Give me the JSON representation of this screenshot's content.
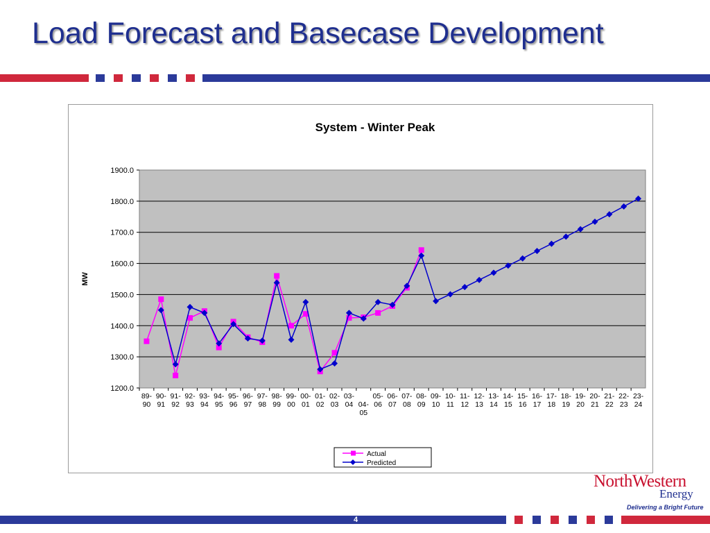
{
  "slide": {
    "title": "Load Forecast and Basecase Development",
    "page_number": "4"
  },
  "colors": {
    "navy": "#2b3a9a",
    "red": "#d0283c",
    "plot_bg": "#c0c0c0",
    "actual": "#ff00ff",
    "predicted": "#0000cc"
  },
  "logo": {
    "name": "NorthWestern",
    "sub": "Energy",
    "tagline": "Delivering a Bright Future"
  },
  "chart_data": {
    "type": "line",
    "title": "System - Winter Peak",
    "xlabel": "",
    "ylabel": "MW",
    "ylim": [
      1200,
      1900
    ],
    "yticks": [
      "1200.0",
      "1300.0",
      "1400.0",
      "1500.0",
      "1600.0",
      "1700.0",
      "1800.0",
      "1900.0"
    ],
    "grid": true,
    "legend_position": "bottom-center",
    "categories": [
      "89-90",
      "90-91",
      "91-92",
      "92-93",
      "93-94",
      "94-95",
      "95-96",
      "96-97",
      "97-98",
      "98-99",
      "99-00",
      "00-01",
      "01-02",
      "02-03",
      "03-04",
      "04-05",
      "05-06",
      "06-07",
      "07-08",
      "08-09",
      "09-10",
      "10-11",
      "11-12",
      "12-13",
      "13-14",
      "14-15",
      "15-16",
      "16-17",
      "17-18",
      "18-19",
      "19-20",
      "20-21",
      "21-22",
      "22-23",
      "23-24"
    ],
    "series": [
      {
        "name": "Actual",
        "color": "#ff00ff",
        "marker": "square",
        "values": [
          1350,
          1485,
          1240,
          1425,
          1447,
          1330,
          1413,
          1363,
          1347,
          1560,
          1400,
          1438,
          1253,
          1313,
          1425,
          1427,
          1441,
          1463,
          1522,
          1643,
          null,
          null,
          null,
          null,
          null,
          null,
          null,
          null,
          null,
          null,
          null,
          null,
          null,
          null,
          null
        ]
      },
      {
        "name": "Predicted",
        "color": "#0000cc",
        "marker": "diamond",
        "values": [
          null,
          1450,
          1276,
          1460,
          1441,
          1343,
          1405,
          1359,
          1352,
          1538,
          1355,
          1476,
          1260,
          1279,
          1441,
          1423,
          1476,
          1467,
          1528,
          1625,
          1479,
          1501,
          1524,
          1547,
          1570,
          1593,
          1616,
          1640,
          1663,
          1686,
          1710,
          1734,
          1758,
          1783,
          1808
        ]
      }
    ]
  }
}
